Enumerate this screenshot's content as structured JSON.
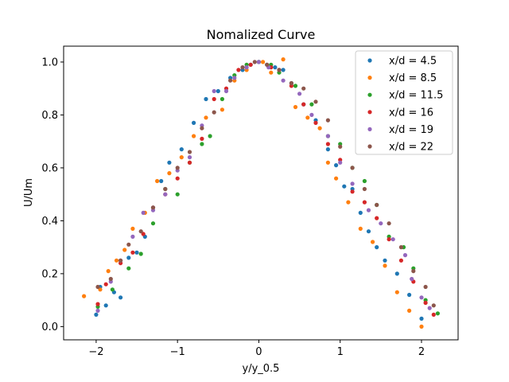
{
  "chart_data": {
    "type": "scatter",
    "title": "Nomalized Curve",
    "xlabel": "y/y_0.5",
    "ylabel": "U/Um",
    "xlim": [
      -2.4,
      2.45
    ],
    "ylim": [
      -0.05,
      1.06
    ],
    "xticks": [
      -2,
      -1,
      0,
      1,
      2
    ],
    "xtick_labels": [
      "−2",
      "−1",
      "0",
      "1",
      "2"
    ],
    "yticks": [
      0.0,
      0.2,
      0.4,
      0.6,
      0.8,
      1.0
    ],
    "ytick_labels": [
      "0.0",
      "0.2",
      "0.4",
      "0.6",
      "0.8",
      "1.0"
    ],
    "grid": false,
    "legend_position": "top-right",
    "series": [
      {
        "name": "x/d = 4.5",
        "color": "#1f77b4",
        "points": [
          [
            -2.0,
            0.045
          ],
          [
            -1.95,
            0.15
          ],
          [
            -1.88,
            0.08
          ],
          [
            -1.78,
            0.13
          ],
          [
            -1.7,
            0.11
          ],
          [
            -1.6,
            0.26
          ],
          [
            -1.5,
            0.28
          ],
          [
            -1.4,
            0.34
          ],
          [
            -1.3,
            0.45
          ],
          [
            -1.2,
            0.55
          ],
          [
            -1.1,
            0.62
          ],
          [
            -0.95,
            0.67
          ],
          [
            -0.8,
            0.77
          ],
          [
            -0.65,
            0.86
          ],
          [
            -0.5,
            0.89
          ],
          [
            -0.35,
            0.94
          ],
          [
            -0.2,
            0.97
          ],
          [
            -0.1,
            0.99
          ],
          [
            0.0,
            1.0
          ],
          [
            0.1,
            0.99
          ],
          [
            0.2,
            0.98
          ],
          [
            0.3,
            0.97
          ],
          [
            0.4,
            0.92
          ],
          [
            0.55,
            0.84
          ],
          [
            0.7,
            0.78
          ],
          [
            0.85,
            0.67
          ],
          [
            0.95,
            0.61
          ],
          [
            1.05,
            0.53
          ],
          [
            1.15,
            0.52
          ],
          [
            1.25,
            0.43
          ],
          [
            1.35,
            0.36
          ],
          [
            1.45,
            0.3
          ],
          [
            1.55,
            0.25
          ],
          [
            1.7,
            0.2
          ],
          [
            1.85,
            0.12
          ],
          [
            2.0,
            0.03
          ]
        ]
      },
      {
        "name": "x/d = 8.5",
        "color": "#ff7f0e",
        "points": [
          [
            -2.15,
            0.115
          ],
          [
            -1.95,
            0.14
          ],
          [
            -1.85,
            0.21
          ],
          [
            -1.75,
            0.25
          ],
          [
            -1.65,
            0.29
          ],
          [
            -1.55,
            0.37
          ],
          [
            -1.4,
            0.43
          ],
          [
            -1.25,
            0.55
          ],
          [
            -1.1,
            0.58
          ],
          [
            -0.95,
            0.64
          ],
          [
            -0.8,
            0.72
          ],
          [
            -0.65,
            0.79
          ],
          [
            -0.45,
            0.82
          ],
          [
            -0.3,
            0.93
          ],
          [
            -0.15,
            0.97
          ],
          [
            0.05,
            1.0
          ],
          [
            0.15,
            0.96
          ],
          [
            0.3,
            1.01
          ],
          [
            0.45,
            0.83
          ],
          [
            0.6,
            0.79
          ],
          [
            0.75,
            0.75
          ],
          [
            0.85,
            0.62
          ],
          [
            0.95,
            0.56
          ],
          [
            1.1,
            0.47
          ],
          [
            1.25,
            0.37
          ],
          [
            1.4,
            0.32
          ],
          [
            1.55,
            0.23
          ],
          [
            1.7,
            0.13
          ],
          [
            1.85,
            0.06
          ],
          [
            2.0,
            0.0
          ]
        ]
      },
      {
        "name": "x/d = 11.5",
        "color": "#2ca02c",
        "points": [
          [
            -1.98,
            0.075
          ],
          [
            -1.8,
            0.14
          ],
          [
            -1.6,
            0.22
          ],
          [
            -1.45,
            0.275
          ],
          [
            -1.3,
            0.39
          ],
          [
            -1.15,
            0.52
          ],
          [
            -1.0,
            0.5
          ],
          [
            -0.85,
            0.62
          ],
          [
            -0.7,
            0.69
          ],
          [
            -0.6,
            0.72
          ],
          [
            -0.45,
            0.86
          ],
          [
            -0.3,
            0.95
          ],
          [
            -0.15,
            0.99
          ],
          [
            0.0,
            1.0
          ],
          [
            0.15,
            0.99
          ],
          [
            0.25,
            0.96
          ],
          [
            0.45,
            0.91
          ],
          [
            0.65,
            0.84
          ],
          [
            0.85,
            0.72
          ],
          [
            1.0,
            0.69
          ],
          [
            1.15,
            0.6
          ],
          [
            1.3,
            0.55
          ],
          [
            1.45,
            0.46
          ],
          [
            1.6,
            0.34
          ],
          [
            1.78,
            0.3
          ],
          [
            1.9,
            0.22
          ],
          [
            2.05,
            0.1
          ],
          [
            2.2,
            0.05
          ]
        ]
      },
      {
        "name": "x/d = 16",
        "color": "#d62728",
        "points": [
          [
            -1.98,
            0.085
          ],
          [
            -1.88,
            0.16
          ],
          [
            -1.7,
            0.24
          ],
          [
            -1.55,
            0.28
          ],
          [
            -1.42,
            0.35
          ],
          [
            -1.3,
            0.45
          ],
          [
            -1.15,
            0.5
          ],
          [
            -1.0,
            0.56
          ],
          [
            -0.85,
            0.62
          ],
          [
            -0.7,
            0.71
          ],
          [
            -0.55,
            0.86
          ],
          [
            -0.4,
            0.9
          ],
          [
            -0.25,
            0.97
          ],
          [
            -0.1,
            0.99
          ],
          [
            0.15,
            0.98
          ],
          [
            0.25,
            0.97
          ],
          [
            0.4,
            0.91
          ],
          [
            0.55,
            0.84
          ],
          [
            0.7,
            0.77
          ],
          [
            0.85,
            0.69
          ],
          [
            1.0,
            0.63
          ],
          [
            1.15,
            0.51
          ],
          [
            1.3,
            0.47
          ],
          [
            1.45,
            0.41
          ],
          [
            1.6,
            0.33
          ],
          [
            1.75,
            0.25
          ],
          [
            1.9,
            0.17
          ],
          [
            2.05,
            0.09
          ],
          [
            2.15,
            0.045
          ]
        ]
      },
      {
        "name": "x/d = 19",
        "color": "#9467bd",
        "points": [
          [
            -1.98,
            0.06
          ],
          [
            -1.82,
            0.17
          ],
          [
            -1.7,
            0.25
          ],
          [
            -1.55,
            0.34
          ],
          [
            -1.42,
            0.43
          ],
          [
            -1.3,
            0.44
          ],
          [
            -1.15,
            0.5
          ],
          [
            -1.0,
            0.59
          ],
          [
            -0.85,
            0.64
          ],
          [
            -0.7,
            0.76
          ],
          [
            -0.55,
            0.89
          ],
          [
            -0.4,
            0.89
          ],
          [
            -0.3,
            0.94
          ],
          [
            -0.15,
            0.98
          ],
          [
            0.0,
            1.0
          ],
          [
            0.12,
            0.98
          ],
          [
            0.3,
            0.93
          ],
          [
            0.5,
            0.88
          ],
          [
            0.65,
            0.8
          ],
          [
            0.85,
            0.72
          ],
          [
            1.0,
            0.62
          ],
          [
            1.15,
            0.54
          ],
          [
            1.35,
            0.44
          ],
          [
            1.5,
            0.39
          ],
          [
            1.65,
            0.33
          ],
          [
            1.8,
            0.27
          ],
          [
            1.88,
            0.18
          ],
          [
            2.0,
            0.11
          ],
          [
            2.1,
            0.07
          ]
        ]
      },
      {
        "name": "x/d = 22",
        "color": "#8c564b",
        "points": [
          [
            -1.98,
            0.15
          ],
          [
            -1.82,
            0.18
          ],
          [
            -1.7,
            0.25
          ],
          [
            -1.6,
            0.31
          ],
          [
            -1.45,
            0.36
          ],
          [
            -1.3,
            0.45
          ],
          [
            -1.15,
            0.52
          ],
          [
            -1.0,
            0.6
          ],
          [
            -0.85,
            0.66
          ],
          [
            -0.7,
            0.75
          ],
          [
            -0.55,
            0.81
          ],
          [
            -0.35,
            0.93
          ],
          [
            -0.2,
            0.98
          ],
          [
            -0.05,
            1.0
          ],
          [
            0.1,
            0.99
          ],
          [
            0.25,
            0.97
          ],
          [
            0.4,
            0.92
          ],
          [
            0.55,
            0.9
          ],
          [
            0.7,
            0.85
          ],
          [
            0.85,
            0.78
          ],
          [
            1.0,
            0.68
          ],
          [
            1.15,
            0.6
          ],
          [
            1.3,
            0.52
          ],
          [
            1.45,
            0.46
          ],
          [
            1.6,
            0.39
          ],
          [
            1.75,
            0.3
          ],
          [
            1.9,
            0.21
          ],
          [
            2.05,
            0.15
          ],
          [
            2.15,
            0.08
          ]
        ]
      }
    ]
  }
}
